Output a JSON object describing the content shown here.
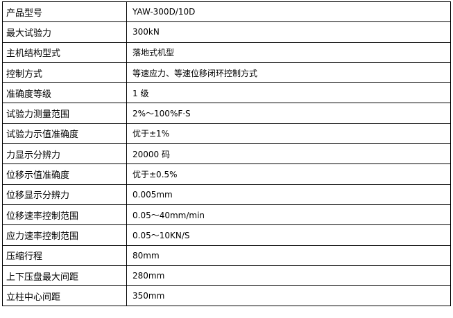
{
  "rows": [
    {
      "label": "产品型号",
      "value": "YAW-300D/10D"
    },
    {
      "label": "最大试验力",
      "value": "300kN"
    },
    {
      "label": "主机结构型式",
      "value": "落地式机型"
    },
    {
      "label": "控制方式",
      "value": "等速应力、等速位移闭环控制方式"
    },
    {
      "label": "准确度等级",
      "value": "1 级"
    },
    {
      "label": "试验力测量范围",
      "value": "2%～100%F·S"
    },
    {
      "label": "试验力示值准确度",
      "value": "优于±1%"
    },
    {
      "label": "力显示分辨力",
      "value": "20000 码"
    },
    {
      "label": "位移示值准确度",
      "value": "优于±0.5%"
    },
    {
      "label": "位移显示分辨力",
      "value": "0.005mm"
    },
    {
      "label": "位移速率控制范围",
      "value": "0.05～40mm/min"
    },
    {
      "label": "应力速率控制范围",
      "value": "0.05～10KN/S"
    },
    {
      "label": "压缩行程",
      "value": "80mm"
    },
    {
      "label": "上下压盘最大间距",
      "value": "280mm"
    },
    {
      "label": "立柱中心间距",
      "value": "350mm"
    }
  ]
}
